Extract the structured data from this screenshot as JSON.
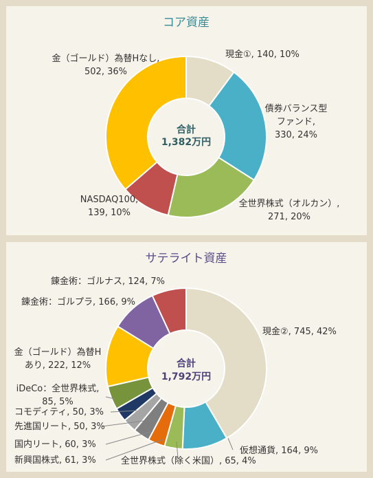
{
  "chart_data": [
    {
      "type": "pie",
      "title": "コア資産",
      "title_color": "#3a8a96",
      "center_label": "合計",
      "center_value": "1,382万円",
      "center_color": "#2f5f63",
      "series": [
        {
          "label_lines": [
            "現金①, 140, 10%"
          ],
          "value": 140,
          "percent": 10,
          "color": "#e3dcc7"
        },
        {
          "label_lines": [
            "債券バランス型",
            "ファンド,",
            "330, 24%"
          ],
          "value": 330,
          "percent": 24,
          "color": "#4ab0c8"
        },
        {
          "label_lines": [
            "全世界株式（オルカン）,",
            "271, 20%"
          ],
          "value": 271,
          "percent": 20,
          "color": "#9bbb59"
        },
        {
          "label_lines": [
            "NASDAQ100,",
            "139, 10%"
          ],
          "value": 139,
          "percent": 10,
          "color": "#c0504d"
        },
        {
          "label_lines": [
            "金（ゴールド）為替Hなし,",
            "502, 36%"
          ],
          "value": 502,
          "percent": 36,
          "color": "#ffc000"
        }
      ]
    },
    {
      "type": "pie",
      "title": "サテライト資産",
      "title_color": "#5a4a8a",
      "center_label": "合計",
      "center_value": "1,792万円",
      "center_color": "#4e3f7a",
      "series": [
        {
          "label_lines": [
            "現金②, 745, 42%"
          ],
          "value": 745,
          "percent": 42,
          "color": "#e3dcc7"
        },
        {
          "label_lines": [
            "仮想通貨, 164, 9%"
          ],
          "value": 164,
          "percent": 9,
          "color": "#4ab0c8"
        },
        {
          "label_lines": [
            "全世界株式（除く米国）, 65, 4%"
          ],
          "value": 65,
          "percent": 4,
          "color": "#9bbb59"
        },
        {
          "label_lines": [
            "新興国株式, 61, 3%"
          ],
          "value": 61,
          "percent": 3,
          "color": "#e46c0a"
        },
        {
          "label_lines": [
            "国内リート, 60, 3%"
          ],
          "value": 60,
          "percent": 3,
          "color": "#7f7f7f"
        },
        {
          "label_lines": [
            "先進国リート, 50, 3%"
          ],
          "value": 50,
          "percent": 3,
          "color": "#a5a5a5"
        },
        {
          "label_lines": [
            "コモディティ, 50, 3%"
          ],
          "value": 50,
          "percent": 3,
          "color": "#1f3864"
        },
        {
          "label_lines": [
            "iDeCo：全世界株式,",
            "85, 5%"
          ],
          "value": 85,
          "percent": 5,
          "color": "#77933c"
        },
        {
          "label_lines": [
            "金（ゴールド）為替H",
            "あり, 222, 12%"
          ],
          "value": 222,
          "percent": 12,
          "color": "#ffc000"
        },
        {
          "label_lines": [
            "錬金術：ゴルプラ, 166, 9%"
          ],
          "value": 166,
          "percent": 9,
          "color": "#8064a2"
        },
        {
          "label_lines": [
            "錬金術：ゴルナス, 124, 7%"
          ],
          "value": 124,
          "percent": 7,
          "color": "#c0504d"
        }
      ]
    }
  ]
}
